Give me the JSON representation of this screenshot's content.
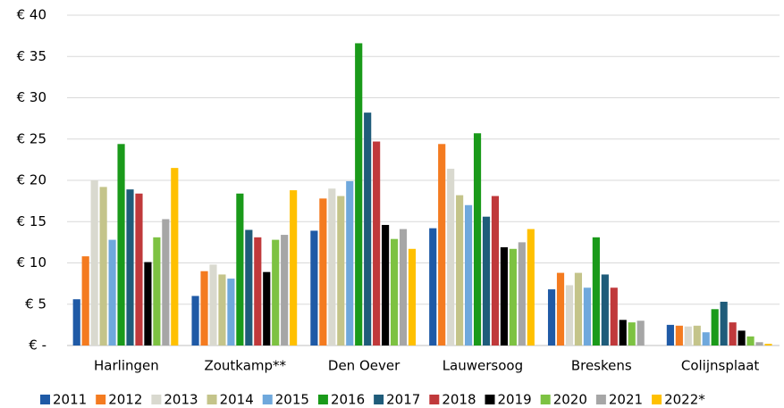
{
  "chart_data": {
    "type": "bar",
    "categories": [
      "Harlingen",
      "Zoutkamp**",
      "Den Oever",
      "Lauwersoog",
      "Breskens",
      "Colijnsplaat"
    ],
    "series": [
      {
        "name": "2011",
        "color": "#1f5aa6",
        "values": [
          5.6,
          6.0,
          13.9,
          14.2,
          6.8,
          2.5
        ]
      },
      {
        "name": "2012",
        "color": "#f47b20",
        "values": [
          10.8,
          9.0,
          17.8,
          24.4,
          8.8,
          2.4
        ]
      },
      {
        "name": "2013",
        "color": "#d9d9cf",
        "values": [
          20.0,
          9.8,
          19.0,
          21.4,
          7.3,
          2.3
        ]
      },
      {
        "name": "2014",
        "color": "#c4c48a",
        "values": [
          19.2,
          8.6,
          18.1,
          18.2,
          8.8,
          2.4
        ]
      },
      {
        "name": "2015",
        "color": "#6fa8dc",
        "values": [
          12.8,
          8.1,
          19.9,
          17.0,
          7.0,
          1.6
        ]
      },
      {
        "name": "2016",
        "color": "#1a9a1a",
        "values": [
          24.4,
          18.4,
          36.6,
          25.7,
          13.1,
          4.4
        ]
      },
      {
        "name": "2017",
        "color": "#1f5c7a",
        "values": [
          18.9,
          14.0,
          28.2,
          15.6,
          8.6,
          5.3
        ]
      },
      {
        "name": "2018",
        "color": "#c0393b",
        "values": [
          18.4,
          13.1,
          24.7,
          18.1,
          7.0,
          2.8
        ]
      },
      {
        "name": "2019",
        "color": "#000000",
        "values": [
          10.1,
          8.9,
          14.6,
          11.9,
          3.1,
          1.8
        ]
      },
      {
        "name": "2020",
        "color": "#7dc242",
        "values": [
          13.1,
          12.8,
          12.9,
          11.7,
          2.8,
          1.1
        ]
      },
      {
        "name": "2021",
        "color": "#a6a6a6",
        "values": [
          15.3,
          13.4,
          14.1,
          12.5,
          3.0,
          0.4
        ]
      },
      {
        "name": "2022*",
        "color": "#ffc000",
        "values": [
          21.5,
          18.8,
          11.7,
          14.1,
          null,
          0.2
        ]
      }
    ],
    "ylim": [
      0,
      40
    ],
    "yticks": [
      {
        "value": 0,
        "label": "€ -"
      },
      {
        "value": 5,
        "label": "€ 5"
      },
      {
        "value": 10,
        "label": "€ 10"
      },
      {
        "value": 15,
        "label": "€ 15"
      },
      {
        "value": 20,
        "label": "€ 20"
      },
      {
        "value": 25,
        "label": "€ 25"
      },
      {
        "value": 30,
        "label": "€ 30"
      },
      {
        "value": 35,
        "label": "€ 35"
      },
      {
        "value": 40,
        "label": "€ 40"
      }
    ],
    "grid": true,
    "legend": "bottom"
  }
}
